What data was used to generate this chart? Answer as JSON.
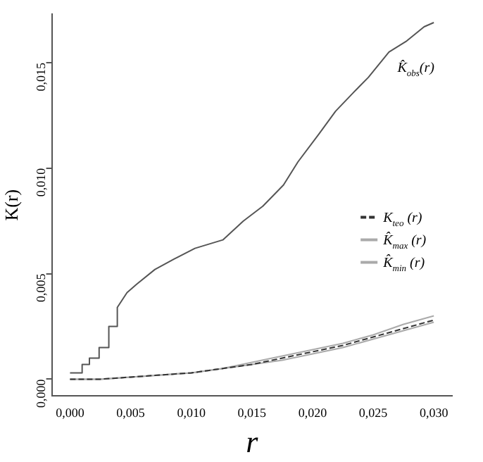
{
  "chart_data": {
    "type": "line",
    "xlabel": "r",
    "ylabel": "K(r)",
    "xlim": [
      -0.0015,
      0.0315
    ],
    "ylim": [
      -0.0008,
      0.0173
    ],
    "xticks": [
      {
        "value": 0,
        "label": "0,000"
      },
      {
        "value": 0.005,
        "label": "0,005"
      },
      {
        "value": 0.01,
        "label": "0,010"
      },
      {
        "value": 0.015,
        "label": "0,015"
      },
      {
        "value": 0.02,
        "label": "0,020"
      },
      {
        "value": 0.025,
        "label": "0,025"
      },
      {
        "value": 0.03,
        "label": "0,030"
      }
    ],
    "yticks": [
      {
        "value": 0,
        "label": "0,000"
      },
      {
        "value": 0.005,
        "label": "0,005"
      },
      {
        "value": 0.01,
        "label": "0,010"
      },
      {
        "value": 0.015,
        "label": "0,015"
      }
    ],
    "grid": false,
    "legend": "right",
    "marker": "none",
    "series": [
      {
        "name": "K̂$_{obs}$(r)",
        "color": "#555555",
        "line_style": "solid",
        "x": [
          0,
          0.001,
          0.001,
          0.0016,
          0.0016,
          0.0024,
          0.0024,
          0.0032,
          0.0032,
          0.0039,
          0.0039,
          0.0047,
          0.0055,
          0.007,
          0.0086,
          0.0103,
          0.0126,
          0.0143,
          0.0159,
          0.0176,
          0.0188,
          0.0205,
          0.0219,
          0.0234,
          0.0246,
          0.0263,
          0.0277,
          0.0292,
          0.03
        ],
        "values": [
          0.0003,
          0.0003,
          0.0007,
          0.0007,
          0.001,
          0.001,
          0.0015,
          0.0015,
          0.0025,
          0.0025,
          0.0034,
          0.0041,
          0.0045,
          0.0052,
          0.0057,
          0.0062,
          0.0066,
          0.0075,
          0.0082,
          0.0092,
          0.0103,
          0.0116,
          0.0127,
          0.0136,
          0.0143,
          0.0155,
          0.016,
          0.0167,
          0.0169
        ]
      },
      {
        "name": "K$_{teo}$ (r)",
        "color": "#333333",
        "line_style": "dashed",
        "x": [
          0,
          0.0025,
          0.005,
          0.0075,
          0.01,
          0.0125,
          0.015,
          0.0175,
          0.02,
          0.0225,
          0.025,
          0.0275,
          0.03
        ],
        "values": [
          0,
          0,
          0.0001,
          0.0002,
          0.0003,
          0.0005,
          0.0007,
          0.001,
          0.0013,
          0.0016,
          0.002,
          0.0024,
          0.0028
        ]
      },
      {
        "name": "K̂$_{max}$ (r)",
        "color": "#aaaaaa",
        "line_style": "solid",
        "x": [
          0,
          0.0025,
          0.005,
          0.0075,
          0.01,
          0.0125,
          0.015,
          0.0175,
          0.02,
          0.0225,
          0.025,
          0.0275,
          0.03
        ],
        "values": [
          0,
          0,
          0.0001,
          0.0002,
          0.0003,
          0.0005,
          0.0008,
          0.0011,
          0.0014,
          0.0017,
          0.0021,
          0.0026,
          0.003
        ]
      },
      {
        "name": "K̂$_{min}$ (r)",
        "color": "#aaaaaa",
        "line_style": "solid",
        "x": [
          0,
          0.0025,
          0.005,
          0.0075,
          0.01,
          0.0125,
          0.015,
          0.0175,
          0.02,
          0.0225,
          0.025,
          0.0275,
          0.03
        ],
        "values": [
          0,
          0,
          0.0001,
          0.0002,
          0.0003,
          0.0005,
          0.0007,
          0.0009,
          0.0012,
          0.0015,
          0.0019,
          0.0023,
          0.0027
        ]
      }
    ]
  }
}
